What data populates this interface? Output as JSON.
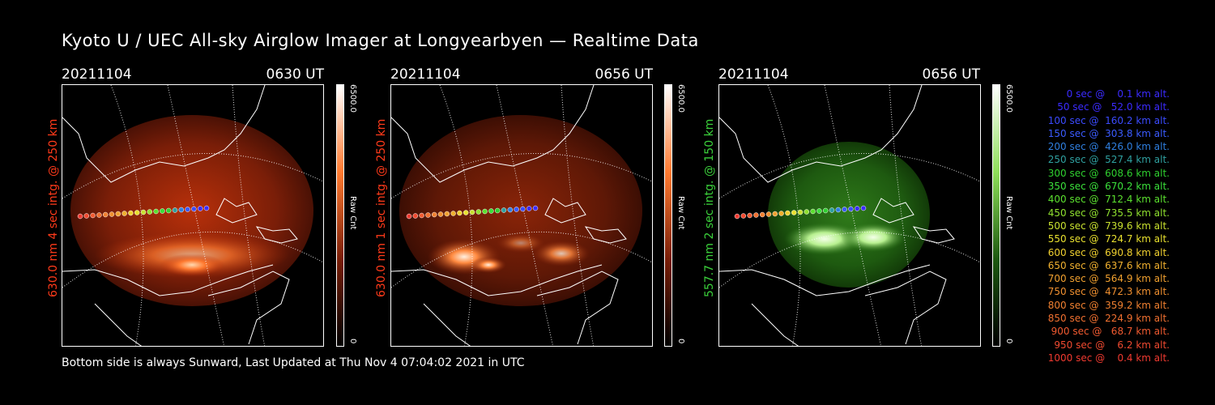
{
  "title": "Kyoto U / UEC All-sky Airglow Imager at Longyearbyen — Realtime Data",
  "footer": "Bottom side is always Sunward, Last Updated at Thu Nov  4 07:04:02 2021 in UTC",
  "panels": [
    {
      "date": "20211104",
      "time": "0630 UT",
      "side_label": "630.0 nm 4 sec intg. @ 250 km",
      "label_color": "#ff3a1a",
      "colorbar_max": "6500.0",
      "colorbar_unit": "Raw Cnt",
      "colorbar_min": "0",
      "theme": "red"
    },
    {
      "date": "20211104",
      "time": "0656 UT",
      "side_label": "630.0 nm 1 sec intg. @ 250 km",
      "label_color": "#ff3a1a",
      "colorbar_max": "6500.0",
      "colorbar_unit": "Raw Cnt",
      "colorbar_min": "0",
      "theme": "red"
    },
    {
      "date": "20211104",
      "time": "0656 UT",
      "side_label": "557.7 nm 2 sec intg. @ 150 km",
      "label_color": "#3bd13b",
      "colorbar_max": "6500.0",
      "colorbar_unit": "Raw Cnt",
      "colorbar_min": "0",
      "theme": "green"
    }
  ],
  "legend": [
    {
      "text": "   0 sec @    0.1 km alt.",
      "color": "#3b2bff"
    },
    {
      "text": "  50 sec @   52.0 km alt.",
      "color": "#3b2bff"
    },
    {
      "text": " 100 sec @  160.2 km alt.",
      "color": "#3b4bff"
    },
    {
      "text": " 150 sec @  303.8 km alt.",
      "color": "#3b5bff"
    },
    {
      "text": " 200 sec @  426.0 km alt.",
      "color": "#2f7fe0"
    },
    {
      "text": " 250 sec @  527.4 km alt.",
      "color": "#2fa0a0"
    },
    {
      "text": " 300 sec @  608.6 km alt.",
      "color": "#2fd02f"
    },
    {
      "text": " 350 sec @  670.2 km alt.",
      "color": "#3be03b"
    },
    {
      "text": " 400 sec @  712.4 km alt.",
      "color": "#5be02f"
    },
    {
      "text": " 450 sec @  735.5 km alt.",
      "color": "#8fe02f"
    },
    {
      "text": " 500 sec @  739.6 km alt.",
      "color": "#c8e02f"
    },
    {
      "text": " 550 sec @  724.7 km alt.",
      "color": "#e8e02f"
    },
    {
      "text": " 600 sec @  690.8 km alt.",
      "color": "#f0d02f"
    },
    {
      "text": " 650 sec @  637.6 km alt.",
      "color": "#f0b02f"
    },
    {
      "text": " 700 sec @  564.9 km alt.",
      "color": "#f0a02f"
    },
    {
      "text": " 750 sec @  472.3 km alt.",
      "color": "#f09030"
    },
    {
      "text": " 800 sec @  359.2 km alt.",
      "color": "#f08030"
    },
    {
      "text": " 850 sec @  224.9 km alt.",
      "color": "#f07030"
    },
    {
      "text": " 900 sec @   68.7 km alt.",
      "color": "#f05a30"
    },
    {
      "text": " 950 sec @    6.2 km alt.",
      "color": "#f04a30"
    },
    {
      "text": "1000 sec @    0.4 km alt.",
      "color": "#f03a30"
    }
  ]
}
